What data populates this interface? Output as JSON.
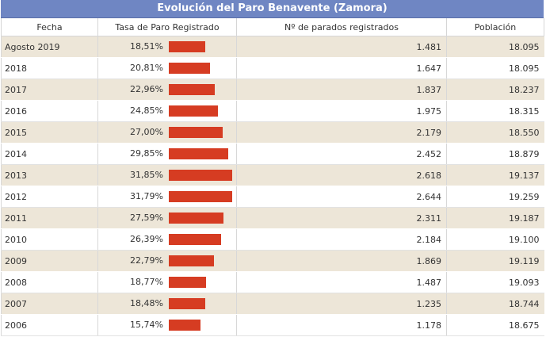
{
  "table": {
    "title": "Evolución del Paro Benavente (Zamora)",
    "headers": {
      "fecha": "Fecha",
      "tasa": "Tasa de Paro Registrado",
      "parados": "Nº de parados registrados",
      "poblacion": "Población"
    },
    "bar_color": "#d63c22",
    "rows": [
      {
        "fecha": "Agosto 2019",
        "tasa": "18,51%",
        "tasa_value": 18.51,
        "parados": "1.481",
        "poblacion": "18.095"
      },
      {
        "fecha": "2018",
        "tasa": "20,81%",
        "tasa_value": 20.81,
        "parados": "1.647",
        "poblacion": "18.095"
      },
      {
        "fecha": "2017",
        "tasa": "22,96%",
        "tasa_value": 22.96,
        "parados": "1.837",
        "poblacion": "18.237"
      },
      {
        "fecha": "2016",
        "tasa": "24,85%",
        "tasa_value": 24.85,
        "parados": "1.975",
        "poblacion": "18.315"
      },
      {
        "fecha": "2015",
        "tasa": "27,00%",
        "tasa_value": 27.0,
        "parados": "2.179",
        "poblacion": "18.550"
      },
      {
        "fecha": "2014",
        "tasa": "29,85%",
        "tasa_value": 29.85,
        "parados": "2.452",
        "poblacion": "18.879"
      },
      {
        "fecha": "2013",
        "tasa": "31,85%",
        "tasa_value": 31.85,
        "parados": "2.618",
        "poblacion": "19.137"
      },
      {
        "fecha": "2012",
        "tasa": "31,79%",
        "tasa_value": 31.79,
        "parados": "2.644",
        "poblacion": "19.259"
      },
      {
        "fecha": "2011",
        "tasa": "27,59%",
        "tasa_value": 27.59,
        "parados": "2.311",
        "poblacion": "19.187"
      },
      {
        "fecha": "2010",
        "tasa": "26,39%",
        "tasa_value": 26.39,
        "parados": "2.184",
        "poblacion": "19.100"
      },
      {
        "fecha": "2009",
        "tasa": "22,79%",
        "tasa_value": 22.79,
        "parados": "1.869",
        "poblacion": "19.119"
      },
      {
        "fecha": "2008",
        "tasa": "18,77%",
        "tasa_value": 18.77,
        "parados": "1.487",
        "poblacion": "19.093"
      },
      {
        "fecha": "2007",
        "tasa": "18,48%",
        "tasa_value": 18.48,
        "parados": "1.235",
        "poblacion": "18.744"
      },
      {
        "fecha": "2006",
        "tasa": "15,74%",
        "tasa_value": 15.74,
        "parados": "1.178",
        "poblacion": "18.675"
      }
    ]
  }
}
